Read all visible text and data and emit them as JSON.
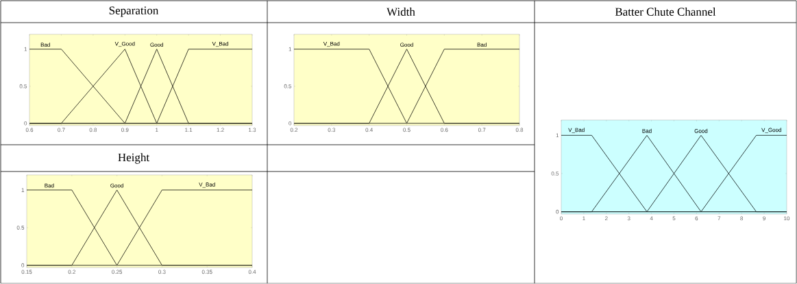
{
  "chart_data": [
    {
      "type": "line",
      "title": "Separation",
      "xlim": [
        0.6,
        1.3
      ],
      "ylim": [
        -0.03,
        1.2
      ],
      "xticks": [
        0.6,
        0.7,
        0.8,
        0.9,
        1,
        1.1,
        1.2,
        1.3
      ],
      "yticks": [
        0,
        0.5,
        1
      ],
      "legend": false,
      "marker": "none",
      "line_style": "solid",
      "series": [
        {
          "name": "Bad",
          "color": "#2b2b1f",
          "x": [
            0.6,
            0.7,
            0.9,
            1.3
          ],
          "values": [
            1,
            1,
            0,
            0
          ]
        },
        {
          "name": "V_Good",
          "color": "#2b2b1f",
          "x": [
            0.6,
            0.7,
            0.9,
            1.0,
            1.3
          ],
          "values": [
            0,
            0,
            1,
            0,
            0
          ]
        },
        {
          "name": "Good",
          "color": "#2b2b1f",
          "x": [
            0.6,
            0.9,
            1.0,
            1.1,
            1.3
          ],
          "values": [
            0,
            0,
            1,
            0,
            0
          ]
        },
        {
          "name": "V_Bad",
          "color": "#2b2b1f",
          "x": [
            0.6,
            1.0,
            1.1,
            1.3
          ],
          "values": [
            0,
            0,
            1,
            1
          ]
        }
      ]
    },
    {
      "type": "line",
      "title": "Width",
      "xlim": [
        0.2,
        0.8
      ],
      "ylim": [
        -0.03,
        1.2
      ],
      "xticks": [
        0.2,
        0.3,
        0.4,
        0.5,
        0.6,
        0.7,
        0.8
      ],
      "yticks": [
        0,
        0.5,
        1
      ],
      "legend": false,
      "marker": "none",
      "line_style": "solid",
      "series": [
        {
          "name": "V_Bad",
          "color": "#2b2b1f",
          "x": [
            0.2,
            0.4,
            0.5,
            0.8
          ],
          "values": [
            1,
            1,
            0,
            0
          ]
        },
        {
          "name": "Good",
          "color": "#2b2b1f",
          "x": [
            0.2,
            0.4,
            0.5,
            0.6,
            0.8
          ],
          "values": [
            0,
            0,
            1,
            0,
            0
          ]
        },
        {
          "name": "Bad",
          "color": "#2b2b1f",
          "x": [
            0.2,
            0.5,
            0.6,
            0.8
          ],
          "values": [
            0,
            0,
            1,
            1
          ]
        }
      ]
    },
    {
      "type": "line",
      "title": "Batter Chute Channel",
      "xlim": [
        0,
        10
      ],
      "ylim": [
        -0.03,
        1.2
      ],
      "xticks": [
        0,
        1,
        2,
        3,
        4,
        5,
        6,
        7,
        8,
        9,
        10
      ],
      "yticks": [
        0,
        0.5,
        1
      ],
      "legend": false,
      "marker": "none",
      "line_style": "solid",
      "series": [
        {
          "name": "V_Bad",
          "color": "#1f2b2b",
          "x": [
            0,
            1.35,
            3.8,
            10
          ],
          "values": [
            1,
            1,
            0,
            0
          ]
        },
        {
          "name": "Bad",
          "color": "#1f2b2b",
          "x": [
            0,
            1.35,
            3.8,
            6.2,
            10
          ],
          "values": [
            0,
            0,
            1,
            0,
            0
          ]
        },
        {
          "name": "Good",
          "color": "#1f2b2b",
          "x": [
            0,
            3.8,
            6.2,
            8.65,
            10
          ],
          "values": [
            0,
            0,
            1,
            0,
            0
          ]
        },
        {
          "name": "V_Good",
          "color": "#1f2b2b",
          "x": [
            0,
            6.2,
            8.65,
            10
          ],
          "values": [
            0,
            0,
            1,
            1
          ]
        }
      ]
    },
    {
      "type": "line",
      "title": "Height",
      "xlim": [
        0.15,
        0.4
      ],
      "ylim": [
        -0.03,
        1.2
      ],
      "xticks": [
        0.15,
        0.2,
        0.25,
        0.3,
        0.35,
        0.4
      ],
      "yticks": [
        0,
        0.5,
        1
      ],
      "legend": false,
      "marker": "none",
      "line_style": "solid",
      "series": [
        {
          "name": "Bad",
          "color": "#2b2b1f",
          "x": [
            0.15,
            0.2,
            0.25,
            0.4
          ],
          "values": [
            1,
            1,
            0,
            0
          ]
        },
        {
          "name": "Good",
          "color": "#2b2b1f",
          "x": [
            0.15,
            0.2,
            0.25,
            0.3,
            0.4
          ],
          "values": [
            0,
            0,
            1,
            0,
            0
          ]
        },
        {
          "name": "V_Bad",
          "color": "#2b2b1f",
          "x": [
            0.15,
            0.25,
            0.3,
            0.4
          ],
          "values": [
            0,
            0,
            1,
            1
          ]
        }
      ]
    }
  ]
}
